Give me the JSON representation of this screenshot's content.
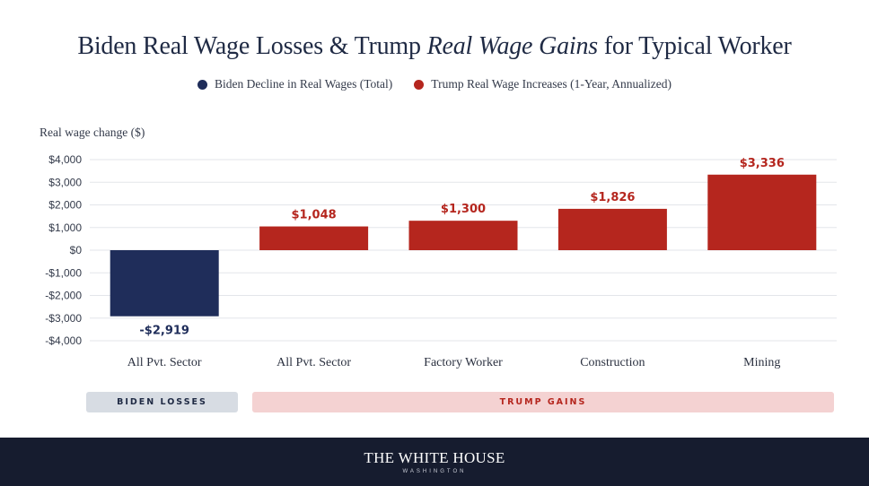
{
  "title": {
    "part1": "Biden Real Wage Losses & Trump ",
    "part2": "Real Wage Gains",
    "part3": " for Typical Worker"
  },
  "legend": [
    {
      "label": "Biden Decline in Real Wages (Total)",
      "color": "#1f2d5a"
    },
    {
      "label": "Trump Real Wage Increases (1-Year, Annualized)",
      "color": "#b5261e"
    }
  ],
  "groups": {
    "biden": "BIDEN LOSSES",
    "trump": "TRUMP GAINS"
  },
  "footer": {
    "name": "THE WHITE HOUSE",
    "sub": "WASHINGTON"
  },
  "chart_data": {
    "type": "bar",
    "ylabel": "Real wage change ($)",
    "ylim": [
      -4000,
      4000
    ],
    "yticks": [
      4000,
      3000,
      2000,
      1000,
      0,
      -1000,
      -2000,
      -3000,
      -4000
    ],
    "ytick_labels": [
      "$4,000",
      "$3,000",
      "$2,000",
      "$1,000",
      "$0",
      "-$1,000",
      "-$2,000",
      "-$3,000",
      "-$4,000"
    ],
    "grid": true,
    "categories": [
      "All Pvt. Sector",
      "All Pvt. Sector",
      "Factory Worker",
      "Construction",
      "Mining"
    ],
    "values": [
      -2919,
      1048,
      1300,
      1826,
      3336
    ],
    "value_labels": [
      "-$2,919",
      "$1,048",
      "$1,300",
      "$1,826",
      "$3,336"
    ],
    "series_index": [
      0,
      1,
      1,
      1,
      1
    ],
    "colors": [
      "#1f2d5a",
      "#b5261e"
    ],
    "label_colors": [
      "#1f2d5a",
      "#b5261e"
    ]
  }
}
